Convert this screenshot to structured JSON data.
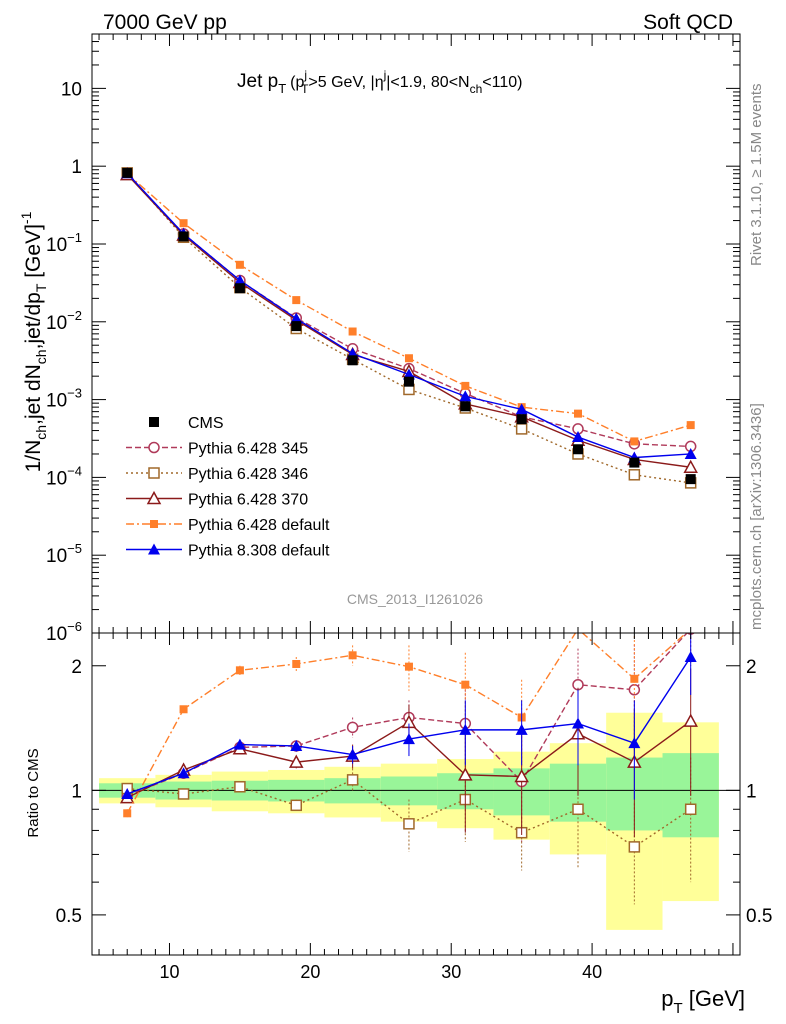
{
  "header": {
    "left": "7000 GeV pp",
    "right": "Soft QCD"
  },
  "side": {
    "rivet": "Rivet 3.1.10, ≥ 1.5M events",
    "mcplots": "mcplots.cern.ch [arXiv:1306.3436]"
  },
  "title": {
    "main": "Jet p",
    "main_sub": "T",
    "cut1": "(p",
    "cut1_sup": "j",
    "cut1_sub": "T",
    "cut2": ">5 GeV, |η",
    "cut2_sup": "j",
    "cut3": "|<1.9, 80<N",
    "cut3_sub": "ch",
    "cut4": "<110)"
  },
  "watermark": "CMS_2013_I1261026",
  "ylabel": {
    "a": "1/N",
    "a_sub": "ch",
    "b": ",jet dN",
    "b_sub": "ch",
    "c": ",jet/dp",
    "c_sub": "T",
    "d": " [GeV]",
    "d_sup": "-1"
  },
  "ratio_ylabel": "Ratio to CMS",
  "xlabel": {
    "p": "p",
    "sub": "T",
    "unit": " [GeV]"
  },
  "chart_data": {
    "type": "scatter",
    "x": [
      7,
      11,
      15,
      19,
      23,
      27,
      31,
      35,
      39,
      43,
      47
    ],
    "xlim": [
      4.5,
      50.5
    ],
    "x_ticks": [
      "10",
      "20",
      "30",
      "40"
    ],
    "main": {
      "yscale": "log",
      "ylim": [
        1e-06,
        50
      ],
      "y_ticks": [
        "10",
        "1",
        "10⁻¹",
        "10⁻²",
        "10⁻³",
        "10⁻⁴",
        "10⁻⁵",
        "10⁻⁶"
      ]
    },
    "ratio": {
      "yscale": "log",
      "ylim": [
        0.4,
        2.4
      ],
      "y_ticks": [
        "0.5",
        "1",
        "2"
      ]
    },
    "data": {
      "name": "CMS",
      "values": [
        0.82,
        0.125,
        0.027,
        0.0088,
        0.0032,
        0.0017,
        0.00082,
        0.00056,
        0.00023,
        0.000155,
        9.5e-05
      ]
    },
    "bands": {
      "green_half": [
        0.04,
        0.05,
        0.055,
        0.06,
        0.07,
        0.08,
        0.1,
        0.13,
        0.16,
        0.2,
        0.23
      ],
      "yellow_half": [
        0.07,
        0.09,
        0.11,
        0.12,
        0.14,
        0.16,
        0.19,
        0.24,
        0.3,
        0.54,
        0.46
      ]
    },
    "series": [
      {
        "name": "Pythia 6.428 345",
        "color": "#b03a5a",
        "marker": "open-circle",
        "dash": "6,3",
        "values": [
          0.79,
          0.135,
          0.034,
          0.0112,
          0.0045,
          0.0025,
          0.0012,
          0.0006,
          0.00042,
          0.00027,
          0.00025
        ],
        "ratio": [
          0.97,
          1.1,
          1.27,
          1.28,
          1.42,
          1.5,
          1.45,
          1.05,
          1.8,
          1.75,
          2.6
        ],
        "ratio_err": [
          0.02,
          0.02,
          0.03,
          0.04,
          0.08,
          0.15,
          0.3,
          0.3,
          0.4,
          0.5,
          0.6
        ]
      },
      {
        "name": "Pythia 6.428 346",
        "color": "#a0682a",
        "marker": "open-square",
        "dash": "2,3",
        "values": [
          0.82,
          0.122,
          0.0275,
          0.0082,
          0.0033,
          0.00135,
          0.00078,
          0.00042,
          0.0002,
          0.000108,
          8.5e-05
        ],
        "ratio": [
          1.01,
          0.98,
          1.02,
          0.92,
          1.06,
          0.83,
          0.95,
          0.79,
          0.9,
          0.73,
          0.9
        ],
        "ratio_err": [
          0.02,
          0.02,
          0.03,
          0.03,
          0.07,
          0.12,
          0.2,
          0.15,
          0.25,
          0.2,
          0.3
        ]
      },
      {
        "name": "Pythia 6.428 370",
        "color": "#8b1a1a",
        "marker": "open-triangle",
        "dash": "",
        "values": [
          0.78,
          0.13,
          0.032,
          0.0105,
          0.0038,
          0.0023,
          0.00088,
          0.0006,
          0.0003,
          0.00017,
          0.000135
        ],
        "ratio": [
          0.96,
          1.12,
          1.26,
          1.17,
          1.21,
          1.46,
          1.09,
          1.08,
          1.37,
          1.17,
          1.47
        ],
        "ratio_err": [
          0.02,
          0.02,
          0.03,
          0.04,
          0.08,
          0.15,
          0.3,
          0.3,
          0.4,
          0.4,
          0.5
        ]
      },
      {
        "name": "Pythia 6.428 default",
        "color": "#ff7f2a",
        "marker": "filled-square",
        "dash": "8,3,2,3",
        "values": [
          0.8,
          0.185,
          0.054,
          0.019,
          0.0075,
          0.0034,
          0.0015,
          0.0008,
          0.00066,
          0.00029,
          0.00047
        ],
        "ratio": [
          0.88,
          1.57,
          1.95,
          2.02,
          2.12,
          1.99,
          1.8,
          1.5,
          3.0,
          1.86,
          3.5
        ],
        "ratio_err": [
          0.02,
          0.03,
          0.05,
          0.08,
          0.12,
          0.25,
          0.35,
          0.35,
          0.5,
          0.5,
          0.6
        ]
      },
      {
        "name": "Pythia 8.308 default",
        "color": "#0000ee",
        "marker": "filled-triangle",
        "dash": "",
        "values": [
          0.81,
          0.135,
          0.034,
          0.011,
          0.0039,
          0.0021,
          0.0011,
          0.00075,
          0.00033,
          0.00018,
          0.0002
        ],
        "ratio": [
          0.98,
          1.1,
          1.29,
          1.28,
          1.22,
          1.33,
          1.4,
          1.4,
          1.45,
          1.3,
          2.1
        ],
        "ratio_err": [
          0.02,
          0.02,
          0.03,
          0.04,
          0.06,
          0.12,
          0.25,
          0.25,
          0.3,
          0.35,
          0.4
        ]
      }
    ]
  }
}
